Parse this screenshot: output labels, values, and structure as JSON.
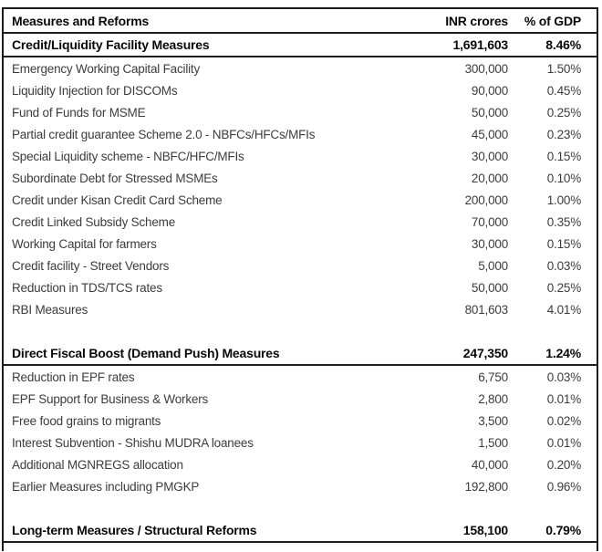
{
  "header": {
    "col_measure": "Measures and Reforms",
    "col_amount": "INR crores",
    "col_pct": "% of GDP"
  },
  "sections": [
    {
      "label": "Credit/Liquidity Facility Measures",
      "amount": "1,691,603",
      "pct": "8.46%",
      "rows": [
        {
          "label": "Emergency Working Capital Facility",
          "amount": "300,000",
          "pct": "1.50%"
        },
        {
          "label": "Liquidity Injection for DISCOMs",
          "amount": "90,000",
          "pct": "0.45%"
        },
        {
          "label": "Fund of Funds for MSME",
          "amount": "50,000",
          "pct": "0.25%"
        },
        {
          "label": "Partial credit guarantee Scheme 2.0 - NBFCs/HFCs/MFIs",
          "amount": "45,000",
          "pct": "0.23%"
        },
        {
          "label": "Special Liquidity scheme - NBFC/HFC/MFIs",
          "amount": "30,000",
          "pct": "0.15%"
        },
        {
          "label": "Subordinate Debt for Stressed MSMEs",
          "amount": "20,000",
          "pct": "0.10%"
        },
        {
          "label": "Credit under Kisan Credit Card Scheme",
          "amount": "200,000",
          "pct": "1.00%"
        },
        {
          "label": "Credit Linked Subsidy Scheme",
          "amount": "70,000",
          "pct": "0.35%"
        },
        {
          "label": "Working Capital for farmers",
          "amount": "30,000",
          "pct": "0.15%"
        },
        {
          "label": "Credit facility - Street Vendors",
          "amount": "5,000",
          "pct": "0.03%"
        },
        {
          "label": "Reduction in TDS/TCS rates",
          "amount": "50,000",
          "pct": "0.25%"
        },
        {
          "label": "RBI Measures",
          "amount": "801,603",
          "pct": "4.01%"
        }
      ]
    },
    {
      "label": "Direct Fiscal Boost (Demand Push) Measures",
      "amount": "247,350",
      "pct": "1.24%",
      "rows": [
        {
          "label": "Reduction in EPF rates",
          "amount": "6,750",
          "pct": "0.03%"
        },
        {
          "label": "EPF Support for Business & Workers",
          "amount": "2,800",
          "pct": "0.01%"
        },
        {
          "label": "Free food grains to migrants",
          "amount": "3,500",
          "pct": "0.02%"
        },
        {
          "label": "Interest Subvention - Shishu MUDRA loanees",
          "amount": "1,500",
          "pct": "0.01%"
        },
        {
          "label": "Additional MGNREGS allocation",
          "amount": "40,000",
          "pct": "0.20%"
        },
        {
          "label": "Earlier Measures including PMGKP",
          "amount": "192,800",
          "pct": "0.96%"
        }
      ]
    },
    {
      "label": "Long-term Measures / Structural Reforms",
      "amount": "158,100",
      "pct": "0.79%",
      "rows": []
    }
  ],
  "colors": {
    "border": "#1c1c1c",
    "text": "#3c3c3c",
    "bold_text": "#090909",
    "background": "#ffffff"
  }
}
